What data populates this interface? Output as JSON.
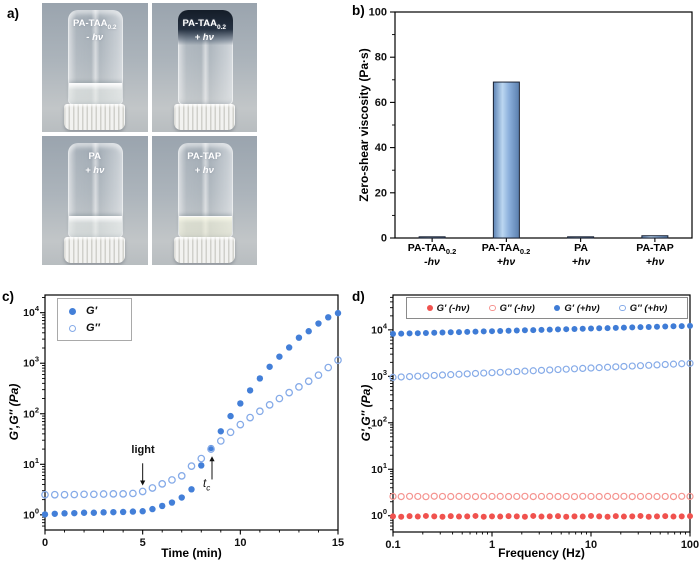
{
  "figure": {
    "panel_labels": {
      "a": "a)",
      "b": "b)",
      "c": "c)",
      "d": "d)"
    }
  },
  "panel_a": {
    "vials": [
      {
        "name": "PA-TAA",
        "sub": "0.2",
        "state": "- hν",
        "content": "flowing liquid at bottom of inverted vial"
      },
      {
        "name": "PA-TAA",
        "sub": "0.2",
        "state": "+ hν",
        "content": "dark gel held at top of inverted vial"
      },
      {
        "name": "PA",
        "sub": "",
        "state": "+ hν",
        "content": "flowing liquid at bottom of inverted vial"
      },
      {
        "name": "PA-TAP",
        "sub": "",
        "state": "+ hν",
        "content": "flowing liquid at bottom of inverted vial"
      }
    ]
  },
  "chart_data": [
    {
      "id": "zero_shear_viscosity",
      "type": "bar",
      "ylabel": "Zero-shear viscosity (Pa·s)",
      "ylim": [
        0,
        100
      ],
      "yticks": [
        0,
        20,
        40,
        60,
        80,
        100
      ],
      "categories": [
        {
          "line1": "PA-TAA",
          "sub": "0.2",
          "line2": "-hν"
        },
        {
          "line1": "PA-TAA",
          "sub": "0.2",
          "line2": "+hν"
        },
        {
          "line1": "PA",
          "sub": "",
          "line2": "+hν"
        },
        {
          "line1": "PA-TAP",
          "sub": "",
          "line2": "+hν"
        }
      ],
      "values": [
        0.5,
        69,
        0.2,
        1
      ],
      "bar_gradient": [
        "#5d83b4",
        "#bcd7f1",
        "#8cb0dc",
        "#5a7fae"
      ],
      "bar_outline": "#1a2233",
      "grid": false
    },
    {
      "id": "photogelation_time_sweep",
      "type": "scatter",
      "xlabel": "Time (min)",
      "ylabel": "G′,G′′ (Pa)",
      "xlim": [
        0,
        15
      ],
      "xticks": [
        0,
        5,
        10,
        15
      ],
      "x_minor_step": 1,
      "ylog": true,
      "ylim_exp": [
        -0.3,
        4.35
      ],
      "ytick_exps": [
        0,
        1,
        2,
        3,
        4
      ],
      "legend_pos": "top-left-inside",
      "series": [
        {
          "name": "G′",
          "marker": "filled",
          "color": "#437fd8",
          "x": [
            0,
            0.5,
            1,
            1.5,
            2,
            2.5,
            3,
            3.5,
            4,
            4.5,
            5,
            5.5,
            6,
            6.5,
            7,
            7.5,
            8,
            8.5,
            9,
            9.5,
            10,
            10.5,
            11,
            11.5,
            12,
            12.5,
            13,
            13.5,
            14,
            14.5,
            15
          ],
          "y": [
            1.02,
            1.05,
            1.07,
            1.08,
            1.1,
            1.1,
            1.12,
            1.13,
            1.14,
            1.16,
            1.18,
            1.3,
            1.5,
            1.75,
            2.2,
            3.2,
            9.5,
            21,
            45,
            90,
            160,
            290,
            500,
            850,
            1350,
            2050,
            3200,
            4300,
            6100,
            8100,
            9800
          ]
        },
        {
          "name": "G′′",
          "marker": "open",
          "color": "#86abe8",
          "x": [
            0,
            0.5,
            1,
            1.5,
            2,
            2.5,
            3,
            3.5,
            4,
            4.5,
            5,
            5.5,
            6,
            6.5,
            7,
            7.5,
            8,
            8.5,
            9,
            9.5,
            10,
            10.5,
            11,
            11.5,
            12,
            12.5,
            13,
            13.5,
            14,
            14.5,
            15
          ],
          "y": [
            2.5,
            2.5,
            2.5,
            2.52,
            2.55,
            2.55,
            2.58,
            2.6,
            2.6,
            2.65,
            2.9,
            3.4,
            4.1,
            4.9,
            5.9,
            9.2,
            13,
            20,
            29,
            43,
            61,
            84,
            112,
            150,
            200,
            262,
            340,
            440,
            580,
            820,
            1150
          ]
        }
      ],
      "annotations": [
        {
          "text": "light",
          "sub": "",
          "x": 5,
          "arrow_from_exp": 1.02,
          "arrow_to_exp": 0.58,
          "dir": "down"
        },
        {
          "text": "t",
          "sub": "c",
          "x": 8.55,
          "arrow_from_exp": 0.7,
          "arrow_to_exp": 1.16,
          "dir": "up"
        }
      ]
    },
    {
      "id": "frequency_sweep",
      "type": "scatter",
      "xlabel": "Frequency (Hz)",
      "ylabel": "G′,G′′ (Pa)",
      "xlog": true,
      "xlim_exp": [
        -1,
        2
      ],
      "xtick_exps": [
        -1,
        0,
        1,
        2
      ],
      "xtick_labels": [
        "0.1",
        "1",
        "10",
        "100"
      ],
      "ylog": true,
      "ylim_exp": [
        -0.35,
        4.75
      ],
      "ytick_exps": [
        0,
        1,
        2,
        3,
        4
      ],
      "legend_pos": "top-inside-row",
      "series": [
        {
          "name": "G′ (-hν)",
          "label": "G′ (-hν)",
          "marker": "filled",
          "color": "#f0524e",
          "x": [
            0.1,
            0.121,
            0.147,
            0.178,
            0.215,
            0.261,
            0.316,
            0.383,
            0.464,
            0.562,
            0.681,
            0.825,
            1,
            1.21,
            1.47,
            1.78,
            2.15,
            2.61,
            3.16,
            3.83,
            4.64,
            5.62,
            6.81,
            8.25,
            10,
            12.1,
            14.7,
            17.8,
            21.5,
            26.1,
            31.6,
            38.3,
            46.4,
            56.2,
            68.1,
            82.5,
            100
          ],
          "y": [
            0.97,
            0.95,
            0.98,
            0.96,
            0.99,
            0.97,
            0.95,
            0.98,
            0.96,
            0.97,
            0.99,
            0.95,
            0.97,
            0.96,
            0.98,
            0.97,
            0.95,
            0.99,
            0.96,
            0.97,
            0.98,
            0.95,
            0.97,
            0.96,
            0.99,
            0.97,
            0.95,
            0.98,
            0.96,
            0.97,
            0.99,
            0.95,
            0.97,
            0.98,
            0.96,
            0.97,
            0.98
          ]
        },
        {
          "name": "G′′ (-hν)",
          "label": "G′′ (-hν)",
          "marker": "open",
          "color": "#f59490",
          "x": [
            0.1,
            0.121,
            0.147,
            0.178,
            0.215,
            0.261,
            0.316,
            0.383,
            0.464,
            0.562,
            0.681,
            0.825,
            1,
            1.21,
            1.47,
            1.78,
            2.15,
            2.61,
            3.16,
            3.83,
            4.64,
            5.62,
            6.81,
            8.25,
            10,
            12.1,
            14.7,
            17.8,
            21.5,
            26.1,
            31.6,
            38.3,
            46.4,
            56.2,
            68.1,
            82.5,
            100
          ],
          "y": [
            2.6,
            2.58,
            2.62,
            2.6,
            2.57,
            2.63,
            2.6,
            2.59,
            2.61,
            2.6,
            2.58,
            2.62,
            2.6,
            2.61,
            2.59,
            2.6,
            2.62,
            2.58,
            2.6,
            2.61,
            2.59,
            2.6,
            2.58,
            2.62,
            2.6,
            2.59,
            2.61,
            2.6,
            2.62,
            2.58,
            2.6,
            2.61,
            2.59,
            2.6,
            2.58,
            2.62,
            2.6
          ]
        },
        {
          "name": "G′ (+hν)",
          "label": "G′ (+hν)",
          "marker": "filled",
          "color": "#3f7cd6",
          "x": [
            0.1,
            0.121,
            0.147,
            0.178,
            0.215,
            0.261,
            0.316,
            0.383,
            0.464,
            0.562,
            0.681,
            0.825,
            1,
            1.21,
            1.47,
            1.78,
            2.15,
            2.61,
            3.16,
            3.83,
            4.64,
            5.62,
            6.81,
            8.25,
            10,
            12.1,
            14.7,
            17.8,
            21.5,
            26.1,
            31.6,
            38.3,
            46.4,
            56.2,
            68.1,
            82.5,
            100
          ],
          "y": [
            8200,
            8291,
            8383,
            8476,
            8570,
            8665,
            8761,
            8858,
            8956,
            9055,
            9155,
            9257,
            9360,
            9464,
            9568,
            9674,
            9781,
            9890,
            9999,
            10110,
            10222,
            10335,
            10450,
            10566,
            10683,
            10801,
            10921,
            11042,
            11164,
            11288,
            11413,
            11540,
            11668,
            11797,
            11928,
            12060,
            12194
          ]
        },
        {
          "name": "G′′ (+hν)",
          "label": "G′′ (+hν)",
          "marker": "open",
          "color": "#86abe8",
          "x": [
            0.1,
            0.121,
            0.147,
            0.178,
            0.215,
            0.261,
            0.316,
            0.383,
            0.464,
            0.562,
            0.681,
            0.825,
            1,
            1.21,
            1.47,
            1.78,
            2.15,
            2.61,
            3.16,
            3.83,
            4.64,
            5.62,
            6.81,
            8.25,
            10,
            12.1,
            14.7,
            17.8,
            21.5,
            26.1,
            31.6,
            38.3,
            46.4,
            56.2,
            68.1,
            82.5,
            100
          ],
          "y": [
            950,
            968,
            987,
            1006,
            1026,
            1046,
            1066,
            1087,
            1108,
            1130,
            1152,
            1174,
            1197,
            1220,
            1244,
            1268,
            1293,
            1318,
            1344,
            1370,
            1397,
            1424,
            1452,
            1480,
            1509,
            1538,
            1568,
            1599,
            1630,
            1662,
            1694,
            1727,
            1761,
            1795,
            1830,
            1866,
            1902
          ]
        }
      ]
    }
  ]
}
